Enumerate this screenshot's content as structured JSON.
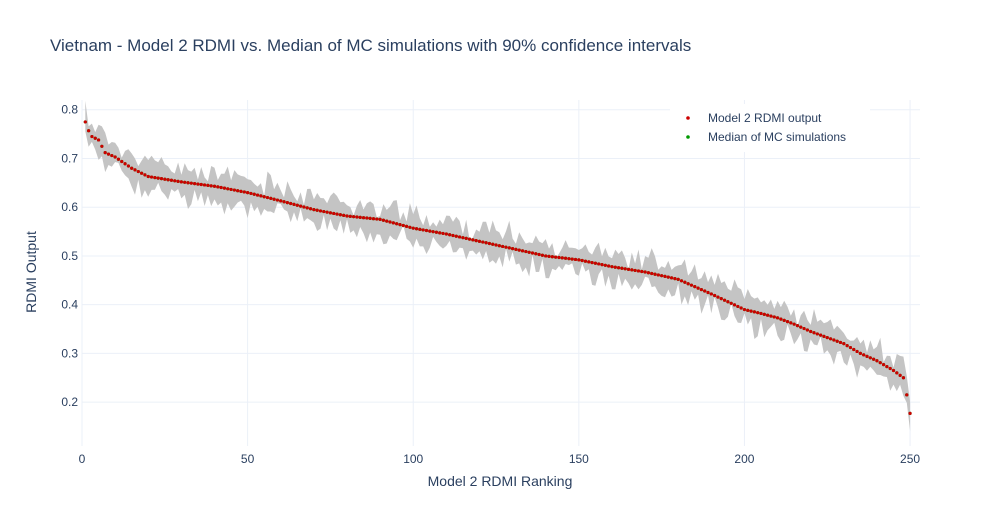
{
  "chart_data": {
    "type": "scatter",
    "title": "Vietnam - Model 2 RDMI vs. Median of MC simulations with 90% confidence intervals",
    "xlabel": "Model 2 RDMI Ranking",
    "ylabel": "RDMI Output",
    "xlim": [
      0,
      253
    ],
    "ylim": [
      0.11,
      0.82
    ],
    "xticks": [
      0,
      50,
      100,
      150,
      200,
      250
    ],
    "yticks": [
      0.2,
      0.3,
      0.4,
      0.5,
      0.6,
      0.7,
      0.8
    ],
    "xtick_labels": [
      "0",
      "50",
      "100",
      "150",
      "200",
      "250"
    ],
    "ytick_labels": [
      "0.2",
      "0.3",
      "0.4",
      "0.5",
      "0.6",
      "0.7",
      "0.8"
    ],
    "grid": true,
    "legend_position": "top-right",
    "n_points": 250,
    "series": [
      {
        "name": "Model 2 RDMI output",
        "color": "#cc0000",
        "marker": "dot"
      },
      {
        "name": "Median of MC simulations",
        "color": "#009900",
        "marker": "dot"
      }
    ],
    "band": {
      "color": "#c4c4c4",
      "level": "90%"
    },
    "anchors": [
      [
        1,
        0.775
      ],
      [
        2,
        0.757
      ],
      [
        3,
        0.745
      ],
      [
        5,
        0.738
      ],
      [
        6,
        0.725
      ],
      [
        7,
        0.712
      ],
      [
        10,
        0.703
      ],
      [
        15,
        0.68
      ],
      [
        20,
        0.663
      ],
      [
        30,
        0.652
      ],
      [
        40,
        0.643
      ],
      [
        50,
        0.63
      ],
      [
        60,
        0.613
      ],
      [
        70,
        0.595
      ],
      [
        80,
        0.582
      ],
      [
        90,
        0.575
      ],
      [
        100,
        0.557
      ],
      [
        110,
        0.545
      ],
      [
        120,
        0.53
      ],
      [
        130,
        0.515
      ],
      [
        140,
        0.5
      ],
      [
        150,
        0.492
      ],
      [
        160,
        0.478
      ],
      [
        170,
        0.467
      ],
      [
        180,
        0.452
      ],
      [
        185,
        0.437
      ],
      [
        190,
        0.422
      ],
      [
        200,
        0.39
      ],
      [
        205,
        0.382
      ],
      [
        210,
        0.373
      ],
      [
        215,
        0.36
      ],
      [
        220,
        0.345
      ],
      [
        230,
        0.32
      ],
      [
        235,
        0.3
      ],
      [
        240,
        0.285
      ],
      [
        245,
        0.265
      ],
      [
        248,
        0.25
      ],
      [
        249,
        0.215
      ],
      [
        250,
        0.177
      ]
    ]
  }
}
